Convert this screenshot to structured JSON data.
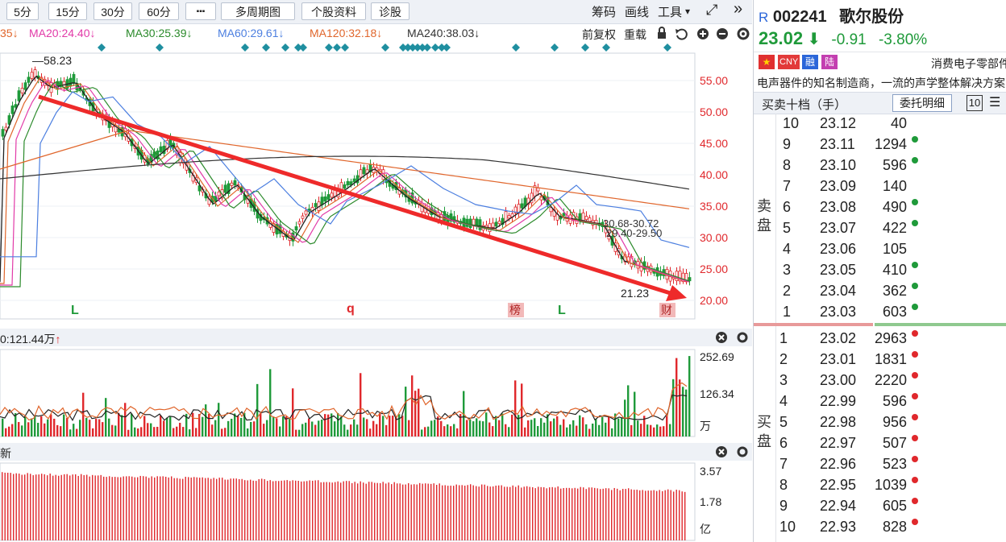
{
  "toolbar": {
    "periods": [
      "5分",
      "15分",
      "30分",
      "60分"
    ],
    "more": "▪▪▪",
    "multi_period": "多周期图",
    "profile": "个股资料",
    "diagnose": "诊股",
    "chips": "筹码",
    "draw": "画线",
    "tools": "工具",
    "tools_caret": "▾",
    "fullscreen": "⤢",
    "collapse": "»"
  },
  "ma_legend": [
    {
      "text": "35",
      "color": "#e0662c"
    },
    {
      "text": "MA20:24.40",
      "color": "#e23aa8"
    },
    {
      "text": "MA30:25.39",
      "color": "#2b8a2b"
    },
    {
      "text": "MA60:29.61",
      "color": "#4c7fe0"
    },
    {
      "text": "MA120:32.18",
      "color": "#e0662c"
    },
    {
      "text": "MA240:38.03",
      "color": "#333333"
    }
  ],
  "chart_tools": {
    "adjust": "前复权",
    "replay": "重载"
  },
  "price_axis": [
    "55.00",
    "50.00",
    "45.00",
    "40.00",
    "35.00",
    "30.00",
    "25.00",
    "20.00"
  ],
  "annotations": {
    "high": "58.23",
    "low": "21.23",
    "range1": "30.68-30.72",
    "range2": "29.40-29.50",
    "markers": [
      "L",
      "q",
      "榜",
      "L",
      "财"
    ]
  },
  "volume_panel": {
    "title": "0:121.44万",
    "axis": [
      "252.69",
      "126.34",
      "万"
    ]
  },
  "amount_panel": {
    "title": "新",
    "axis": [
      "3.57",
      "1.78",
      "亿"
    ]
  },
  "stock": {
    "prefix": "R",
    "code": "002241",
    "name": "歌尔股份",
    "price": "23.02",
    "change": "-0.91",
    "pct": "-3.80%",
    "tags": [
      "CNY",
      "融",
      "陆"
    ],
    "sector": "消费电子零部件",
    "desc": "电声器件的知名制造商，一流的声学整体解决方案",
    "orderbook_title": "买卖十档（手）",
    "detail_button": "委托明细",
    "depth": "10"
  },
  "sell_label": "卖盘",
  "buy_label": "买盘",
  "asks": [
    {
      "level": "10",
      "price": "23.12",
      "vol": "40",
      "dot": false
    },
    {
      "level": "9",
      "price": "23.11",
      "vol": "1294",
      "dot": true
    },
    {
      "level": "8",
      "price": "23.10",
      "vol": "596",
      "dot": true
    },
    {
      "level": "7",
      "price": "23.09",
      "vol": "140",
      "dot": false
    },
    {
      "level": "6",
      "price": "23.08",
      "vol": "490",
      "dot": true
    },
    {
      "level": "5",
      "price": "23.07",
      "vol": "422",
      "dot": true
    },
    {
      "level": "4",
      "price": "23.06",
      "vol": "105",
      "dot": false
    },
    {
      "level": "3",
      "price": "23.05",
      "vol": "410",
      "dot": true
    },
    {
      "level": "2",
      "price": "23.04",
      "vol": "362",
      "dot": true
    },
    {
      "level": "1",
      "price": "23.03",
      "vol": "603",
      "dot": true
    }
  ],
  "bids": [
    {
      "level": "1",
      "price": "23.02",
      "vol": "2963"
    },
    {
      "level": "2",
      "price": "23.01",
      "vol": "1831"
    },
    {
      "level": "3",
      "price": "23.00",
      "vol": "2220"
    },
    {
      "level": "4",
      "price": "22.99",
      "vol": "596"
    },
    {
      "level": "5",
      "price": "22.98",
      "vol": "956"
    },
    {
      "level": "6",
      "price": "22.97",
      "vol": "507"
    },
    {
      "level": "7",
      "price": "22.96",
      "vol": "523"
    },
    {
      "level": "8",
      "price": "22.95",
      "vol": "1039"
    },
    {
      "level": "9",
      "price": "22.94",
      "vol": "605"
    },
    {
      "level": "10",
      "price": "22.93",
      "vol": "828"
    }
  ],
  "colors": {
    "up": "#e0282c",
    "down": "#1f9a3a",
    "accent": "#2b66d9",
    "arrow": "#ee2a2a"
  }
}
